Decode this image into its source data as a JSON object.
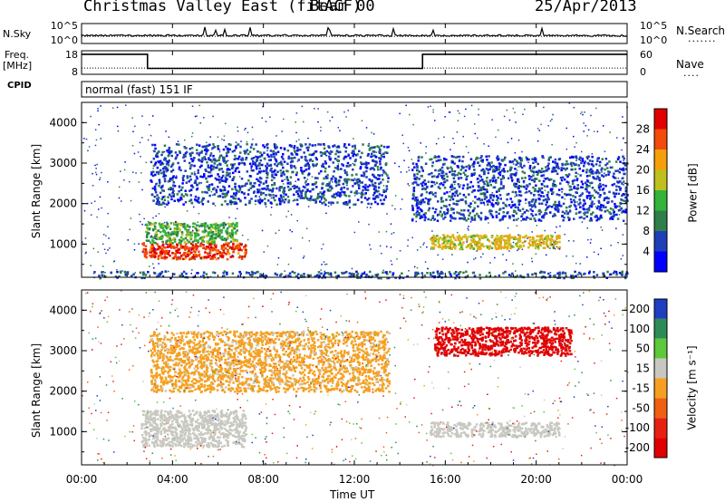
{
  "header": {
    "station": "Christmas Valley East (fitACF)",
    "beam": "Beam 00",
    "date": "25/Apr/2013"
  },
  "left_labels": {
    "nsky": "N.Sky",
    "freq": "Freq.",
    "freq_unit": "[MHz]",
    "cpid": "CPID"
  },
  "right_labels": {
    "nsearch": "N.Search",
    "nave": "Nave"
  },
  "cpid_text": "normal (fast) 151 IF",
  "chart_data": [
    {
      "type": "line",
      "name": "noise",
      "yticks_left": [
        "10^5",
        "10^0"
      ],
      "yticks_right": [
        "10^5",
        "10^0"
      ],
      "x_hours": [
        0,
        24
      ],
      "sky_level": 0.4,
      "search_level": 0.36
    },
    {
      "type": "line",
      "name": "frequency_nave",
      "yticks_left": [
        "18",
        "8"
      ],
      "yticks_right": [
        "60",
        "0"
      ],
      "freq_steps": [
        {
          "x0": 0,
          "x1": 2.9,
          "y": 16.5
        },
        {
          "x0": 2.9,
          "x1": 15.0,
          "y": 10.5
        },
        {
          "x0": 15.0,
          "x1": 24,
          "y": 16.5
        }
      ],
      "nave_level": 16
    },
    {
      "type": "heatmap",
      "name": "power",
      "xlabel": "",
      "ylabel": "Slant Range [km]",
      "ylim": [
        180,
        4500
      ],
      "yticks": [
        1000,
        2000,
        3000,
        4000
      ],
      "xlim_hours": [
        0,
        24
      ],
      "colorbar": {
        "label": "Power [dB]",
        "ticks": [
          4,
          8,
          12,
          16,
          20,
          24,
          28
        ],
        "range": [
          0,
          32
        ],
        "colors": [
          "#0000ff",
          "#1e3fb7",
          "#2e7f4a",
          "#35b33a",
          "#bfbf1f",
          "#f59f0a",
          "#f24a0a",
          "#e00000"
        ]
      },
      "features": [
        {
          "x0": 2.6,
          "x1": 7.2,
          "r0": 650,
          "r1": 1050,
          "value": 27
        },
        {
          "x0": 2.8,
          "x1": 6.8,
          "r0": 1050,
          "r1": 1550,
          "value": 14
        },
        {
          "x0": 15.3,
          "x1": 21.0,
          "r0": 900,
          "r1": 1250,
          "value": 19
        },
        {
          "x0": 3.0,
          "x1": 13.5,
          "r0": 2000,
          "r1": 3500,
          "value": 6
        },
        {
          "x0": 14.5,
          "x1": 24.0,
          "r0": 1600,
          "r1": 3200,
          "value": 6
        },
        {
          "x0": 0.5,
          "x1": 24.0,
          "r0": 180,
          "r1": 350,
          "value": 7
        }
      ]
    },
    {
      "type": "heatmap",
      "name": "velocity",
      "xlabel": "Time UT",
      "ylabel": "Slant Range [km]",
      "ylim": [
        180,
        4500
      ],
      "yticks": [
        1000,
        2000,
        3000,
        4000
      ],
      "xlim_hours": [
        0,
        24
      ],
      "xticks": [
        "00:00",
        "04:00",
        "08:00",
        "12:00",
        "16:00",
        "20:00",
        "00:00"
      ],
      "colorbar": {
        "label": "Velocity [m s⁻¹]",
        "ticks": [
          "200",
          "100",
          "50",
          "15",
          "-15",
          "-50",
          "-100",
          "-200"
        ],
        "colors": [
          "#1f3fbf",
          "#2e8b57",
          "#5cc83a",
          "#c8c8c0",
          "#f5a020",
          "#f06010",
          "#e82010",
          "#e00000"
        ]
      },
      "features": [
        {
          "x0": 2.6,
          "x1": 7.2,
          "r0": 650,
          "r1": 1550,
          "value": "ground-scatter"
        },
        {
          "x0": 3.0,
          "x1": 13.5,
          "r0": 2000,
          "r1": 3500,
          "value": -30
        },
        {
          "x0": 15.3,
          "x1": 21.0,
          "r0": 900,
          "r1": 1250,
          "value": "ground-scatter"
        },
        {
          "x0": 15.5,
          "x1": 21.5,
          "r0": 2900,
          "r1": 3600,
          "value": -220
        }
      ]
    }
  ]
}
